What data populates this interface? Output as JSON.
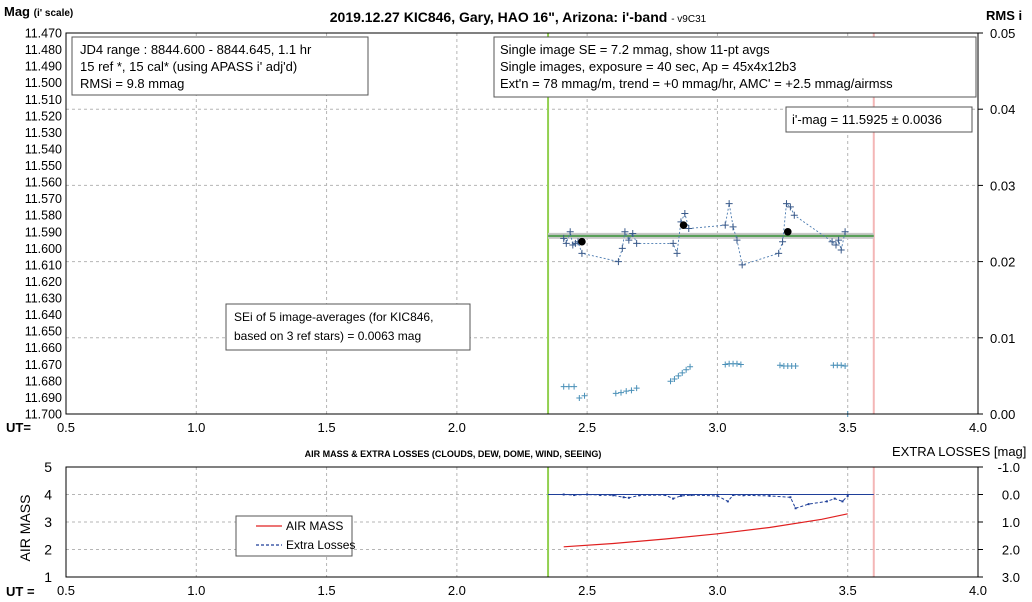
{
  "chart_data": [
    {
      "type": "scatter",
      "title": "2019.12.27 KIC846, Gary, HAO 16\", Arizona: i'-band",
      "title_suffix": "- v9C31",
      "ylabel": "Mag",
      "ylabel_suffix": "(i' scale)",
      "y2label": "RMS i",
      "xlabel": "UT=",
      "xlim": [
        0.5,
        4.0
      ],
      "xticks": [
        0.5,
        1.0,
        1.5,
        2.0,
        2.5,
        3.0,
        3.5,
        4.0
      ],
      "xtick_labels": [
        "0.5",
        "1.0",
        "1.5",
        "2.0",
        "2.5",
        "3.0",
        "3.5",
        "4.0"
      ],
      "ylim": [
        11.47,
        11.7
      ],
      "yinvert": true,
      "ytick_labels": [
        "11.470",
        "11.480",
        "11.490",
        "11.500",
        "11.510",
        "11.520",
        "11.530",
        "11.540",
        "11.550",
        "11.560",
        "11.570",
        "11.580",
        "11.590",
        "11.600",
        "11.610",
        "11.620",
        "11.630",
        "11.640",
        "11.650",
        "11.660",
        "11.670",
        "11.680",
        "11.690",
        "11.700"
      ],
      "y2lim": [
        0.0,
        0.05
      ],
      "y2tick_labels": [
        "0.05",
        "0.04",
        "0.03",
        "0.02",
        "0.01",
        "0.00"
      ],
      "grid": true,
      "vlines": [
        {
          "name": "start",
          "x": 2.35,
          "color": "#92d050"
        },
        {
          "name": "end",
          "x": 3.6,
          "color": "#f4b6b6"
        }
      ],
      "mean_mag": 11.5925,
      "mean_line_color": "#5aa05a",
      "series": [
        {
          "kind": "individual",
          "color": "#4a7ab0",
          "points": [
            [
              2.41,
              11.594
            ],
            [
              2.42,
              11.597
            ],
            [
              2.435,
              11.59
            ],
            [
              2.445,
              11.598
            ],
            [
              2.455,
              11.597
            ],
            [
              2.465,
              11.596
            ],
            [
              2.48,
              11.603
            ],
            [
              2.62,
              11.608
            ],
            [
              2.635,
              11.6
            ],
            [
              2.645,
              11.59
            ],
            [
              2.66,
              11.595
            ],
            [
              2.675,
              11.591
            ],
            [
              2.69,
              11.597
            ],
            [
              2.83,
              11.597
            ],
            [
              2.845,
              11.603
            ],
            [
              2.86,
              11.584
            ],
            [
              2.875,
              11.579
            ],
            [
              2.89,
              11.588
            ],
            [
              3.03,
              11.586
            ],
            [
              3.045,
              11.573
            ],
            [
              3.06,
              11.587
            ],
            [
              3.075,
              11.595
            ],
            [
              3.095,
              11.61
            ],
            [
              3.235,
              11.603
            ],
            [
              3.25,
              11.596
            ],
            [
              3.265,
              11.573
            ],
            [
              3.28,
              11.575
            ],
            [
              3.295,
              11.58
            ],
            [
              3.44,
              11.596
            ],
            [
              3.455,
              11.598
            ],
            [
              3.465,
              11.595
            ],
            [
              3.475,
              11.601
            ],
            [
              3.49,
              11.59
            ]
          ]
        },
        {
          "kind": "averages",
          "color": "#000000",
          "points": [
            [
              2.48,
              11.596
            ],
            [
              2.87,
              11.586
            ],
            [
              3.27,
              11.59
            ]
          ]
        },
        {
          "kind": "rms",
          "axis": "y2",
          "color": "#4a90b8",
          "points": [
            [
              2.41,
              0.0036
            ],
            [
              2.43,
              0.0036
            ],
            [
              2.45,
              0.0036
            ],
            [
              2.47,
              0.0021
            ],
            [
              2.49,
              0.0024
            ],
            [
              2.61,
              0.0027
            ],
            [
              2.63,
              0.0028
            ],
            [
              2.65,
              0.003
            ],
            [
              2.67,
              0.0031
            ],
            [
              2.69,
              0.0034
            ],
            [
              2.82,
              0.0043
            ],
            [
              2.835,
              0.0046
            ],
            [
              2.85,
              0.005
            ],
            [
              2.865,
              0.0054
            ],
            [
              2.88,
              0.0058
            ],
            [
              2.895,
              0.0062
            ],
            [
              3.03,
              0.0065
            ],
            [
              3.045,
              0.0066
            ],
            [
              3.06,
              0.0066
            ],
            [
              3.075,
              0.0066
            ],
            [
              3.09,
              0.0065
            ],
            [
              3.24,
              0.0064
            ],
            [
              3.255,
              0.0063
            ],
            [
              3.27,
              0.0063
            ],
            [
              3.285,
              0.0063
            ],
            [
              3.3,
              0.0063
            ],
            [
              3.445,
              0.0064
            ],
            [
              3.46,
              0.0064
            ],
            [
              3.475,
              0.0064
            ],
            [
              3.49,
              0.0063
            ],
            [
              3.5,
              0.0
            ]
          ]
        }
      ],
      "annotations": [
        "JD4 range : 8844.600 - 8844.645, 1.1  hr",
        "15 ref *, 15 cal* (using APASS i' adj'd)",
        "RMSi = 9.8 mmag",
        "Single image SE = 7.2 mmag, show 11-pt avgs",
        "Single images, exposure = 40 sec, Ap = 45x4x12b3",
        "Ext'n = 78 mmag/m, trend = +0 mmag/hr, AMC' = +2.5 mmag/airmss",
        "i'-mag = 11.5925 ± 0.0036",
        "SEi of 5 image-averages (for KIC846,",
        "based on 3 ref stars) = 0.0063 mag"
      ]
    },
    {
      "type": "line",
      "title": "AIR MASS & EXTRA LOSSES (CLOUDS, DEW, DOME, WIND, SEEING)",
      "ylabel": "AIR MASS",
      "y2label": "EXTRA LOSSES [mag]",
      "xlabel": "UT =",
      "xlim": [
        0.5,
        4.0
      ],
      "xticks": [
        0.5,
        1.0,
        1.5,
        2.0,
        2.5,
        3.0,
        3.5,
        4.0
      ],
      "xtick_labels": [
        "0.5",
        "1.0",
        "1.5",
        "2.0",
        "2.5",
        "3.0",
        "3.5",
        "4.0"
      ],
      "ylim": [
        1,
        5
      ],
      "ytick_labels": [
        "5",
        "4",
        "3",
        "2",
        "1"
      ],
      "y2lim": [
        3.0,
        -1.0
      ],
      "y2tick_labels": [
        "-1.0",
        "0.0",
        "1.0",
        "2.0",
        "3.0"
      ],
      "grid": true,
      "vlines": [
        {
          "name": "start",
          "x": 2.35,
          "color": "#92d050"
        },
        {
          "name": "end",
          "x": 3.6,
          "color": "#f4b6b6"
        }
      ],
      "baseline_color": "#1f3f99",
      "legend": {
        "position": "inside-left",
        "entries": [
          "AIR MASS",
          "Extra Losses"
        ]
      },
      "series": [
        {
          "name": "AIR MASS",
          "color": "#e02020",
          "x": [
            2.41,
            2.6,
            2.8,
            3.0,
            3.2,
            3.4,
            3.5
          ],
          "values": [
            2.1,
            2.22,
            2.38,
            2.57,
            2.8,
            3.1,
            3.3
          ]
        },
        {
          "name": "Extra Losses",
          "axis": "y2",
          "color": "#1f3f99",
          "x": [
            2.41,
            2.45,
            2.5,
            2.55,
            2.6,
            2.64,
            2.66,
            2.7,
            2.8,
            2.83,
            2.86,
            2.9,
            3.0,
            3.04,
            3.06,
            3.1,
            3.2,
            3.28,
            3.3,
            3.35,
            3.42,
            3.45,
            3.48,
            3.5
          ],
          "values": [
            0.0,
            0.02,
            0.0,
            0.02,
            0.03,
            0.1,
            0.12,
            0.03,
            0.02,
            0.15,
            0.05,
            0.02,
            0.05,
            0.25,
            0.02,
            0.03,
            0.05,
            0.1,
            0.5,
            0.35,
            0.25,
            0.15,
            0.25,
            0.05
          ]
        }
      ]
    }
  ]
}
